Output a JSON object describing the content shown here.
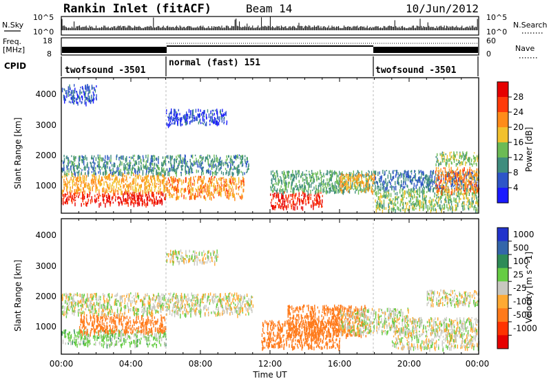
{
  "header": {
    "station": "Rankin Inlet (fitACF)",
    "beam": "Beam 14",
    "date": "10/Jun/2012"
  },
  "panel_labels": {
    "nsky": "N.Sky",
    "nsearch": "N.Search",
    "freq_1": "Freq.",
    "freq_2": "[MHz]",
    "nave": "Nave",
    "cpid": "CPID",
    "nsky_ticks": [
      "10^5",
      "10^0"
    ],
    "nsearch_ticks": [
      "10^5",
      "10^0"
    ],
    "freq_ticks": [
      "18",
      "8"
    ],
    "nave_ticks": [
      "60",
      "0"
    ]
  },
  "cpid_segments": [
    {
      "label": "twofsound -3501",
      "start_hour": 0,
      "end_hour": 6
    },
    {
      "label": "normal (fast) 151",
      "start_hour": 6,
      "end_hour": 18
    },
    {
      "label": "twofsound -3501",
      "start_hour": 18,
      "end_hour": 24
    }
  ],
  "x_axis": {
    "label": "Time UT",
    "ticks": [
      "00:00",
      "04:00",
      "08:00",
      "12:00",
      "16:00",
      "20:00",
      "00:00"
    ],
    "range_hours": [
      0,
      24
    ]
  },
  "power_panel": {
    "ylabel": "Slant Range [km]",
    "yticks": [
      "1000",
      "2000",
      "3000",
      "4000"
    ],
    "colorbar_title": "Power [dB]",
    "colorbar_ticks": [
      "4",
      "8",
      "12",
      "16",
      "20",
      "24",
      "28"
    ],
    "colors": [
      "#1a1aff",
      "#2e56c8",
      "#3f8d7e",
      "#6cbb55",
      "#f2c12e",
      "#ff8c1a",
      "#ff3a0a",
      "#e60000"
    ]
  },
  "velocity_panel": {
    "ylabel": "Slant Range [km]",
    "yticks": [
      "1000",
      "2000",
      "3000",
      "4000"
    ],
    "colorbar_title": "Velocity [m s^-1]",
    "colorbar_ticks": [
      "1000",
      "500",
      "100",
      "25",
      "-25",
      "-100",
      "-500",
      "-1000"
    ],
    "colors": [
      "#2233cc",
      "#3366aa",
      "#2e8b57",
      "#66cc44",
      "#c8c8c0",
      "#ffaa33",
      "#ff7a1a",
      "#ff3300",
      "#e60000"
    ]
  },
  "chart_data": [
    {
      "type": "heatmap",
      "title": "Power [dB]",
      "xlabel": "Time UT",
      "ylabel": "Slant Range [km]",
      "xlim_hours": [
        0,
        24
      ],
      "ylim_km": [
        180,
        4600
      ],
      "bands": [
        {
          "t0": 0.0,
          "t1": 6.0,
          "r0": 500,
          "r1": 900,
          "value": 28
        },
        {
          "t0": 0.0,
          "t1": 6.0,
          "r0": 900,
          "r1": 1500,
          "value": 20
        },
        {
          "t0": 0.0,
          "t1": 10.8,
          "r0": 1500,
          "r1": 2100,
          "value": 10
        },
        {
          "t0": 0.0,
          "t1": 2.0,
          "r0": 3800,
          "r1": 4400,
          "value": 6
        },
        {
          "t0": 6.0,
          "t1": 9.5,
          "r0": 3100,
          "r1": 3600,
          "value": 5
        },
        {
          "t0": 6.0,
          "t1": 10.5,
          "r0": 700,
          "r1": 1400,
          "value": 22
        },
        {
          "t0": 12.0,
          "t1": 15.0,
          "r0": 400,
          "r1": 900,
          "value": 28
        },
        {
          "t0": 12.0,
          "t1": 18.0,
          "r0": 900,
          "r1": 1600,
          "value": 12
        },
        {
          "t0": 16.0,
          "t1": 18.0,
          "r0": 900,
          "r1": 1500,
          "value": 20
        },
        {
          "t0": 18.0,
          "t1": 24.0,
          "r0": 300,
          "r1": 1000,
          "value": 14
        },
        {
          "t0": 18.0,
          "t1": 24.0,
          "r0": 1000,
          "r1": 1600,
          "value": 8
        },
        {
          "t0": 21.5,
          "t1": 24.0,
          "r0": 900,
          "r1": 1700,
          "value": 22
        },
        {
          "t0": 21.5,
          "t1": 24.0,
          "r0": 1800,
          "r1": 2200,
          "value": 14
        }
      ]
    },
    {
      "type": "heatmap",
      "title": "Velocity [m s^-1]",
      "xlabel": "Time UT",
      "ylabel": "Slant Range [km]",
      "xlim_hours": [
        0,
        24
      ],
      "ylim_km": [
        180,
        4600
      ],
      "bands": [
        {
          "t0": 0.0,
          "t1": 6.0,
          "r0": 500,
          "r1": 1000,
          "value": 50
        },
        {
          "t0": 1.0,
          "t1": 6.0,
          "r0": 900,
          "r1": 1500,
          "value": -300
        },
        {
          "t0": 0.0,
          "t1": 11.0,
          "r0": 1500,
          "r1": 2200,
          "value": 0
        },
        {
          "t0": 6.0,
          "t1": 9.0,
          "r0": 3200,
          "r1": 3600,
          "value": 0
        },
        {
          "t0": 11.5,
          "t1": 16.0,
          "r0": 400,
          "r1": 1300,
          "value": -400
        },
        {
          "t0": 13.0,
          "t1": 17.5,
          "r0": 800,
          "r1": 1800,
          "value": -250
        },
        {
          "t0": 16.0,
          "t1": 20.0,
          "r0": 900,
          "r1": 1700,
          "value": 0
        },
        {
          "t0": 19.0,
          "t1": 24.0,
          "r0": 400,
          "r1": 1400,
          "value": 0
        },
        {
          "t0": 21.0,
          "t1": 24.0,
          "r0": 1800,
          "r1": 2300,
          "value": 0
        }
      ]
    }
  ]
}
